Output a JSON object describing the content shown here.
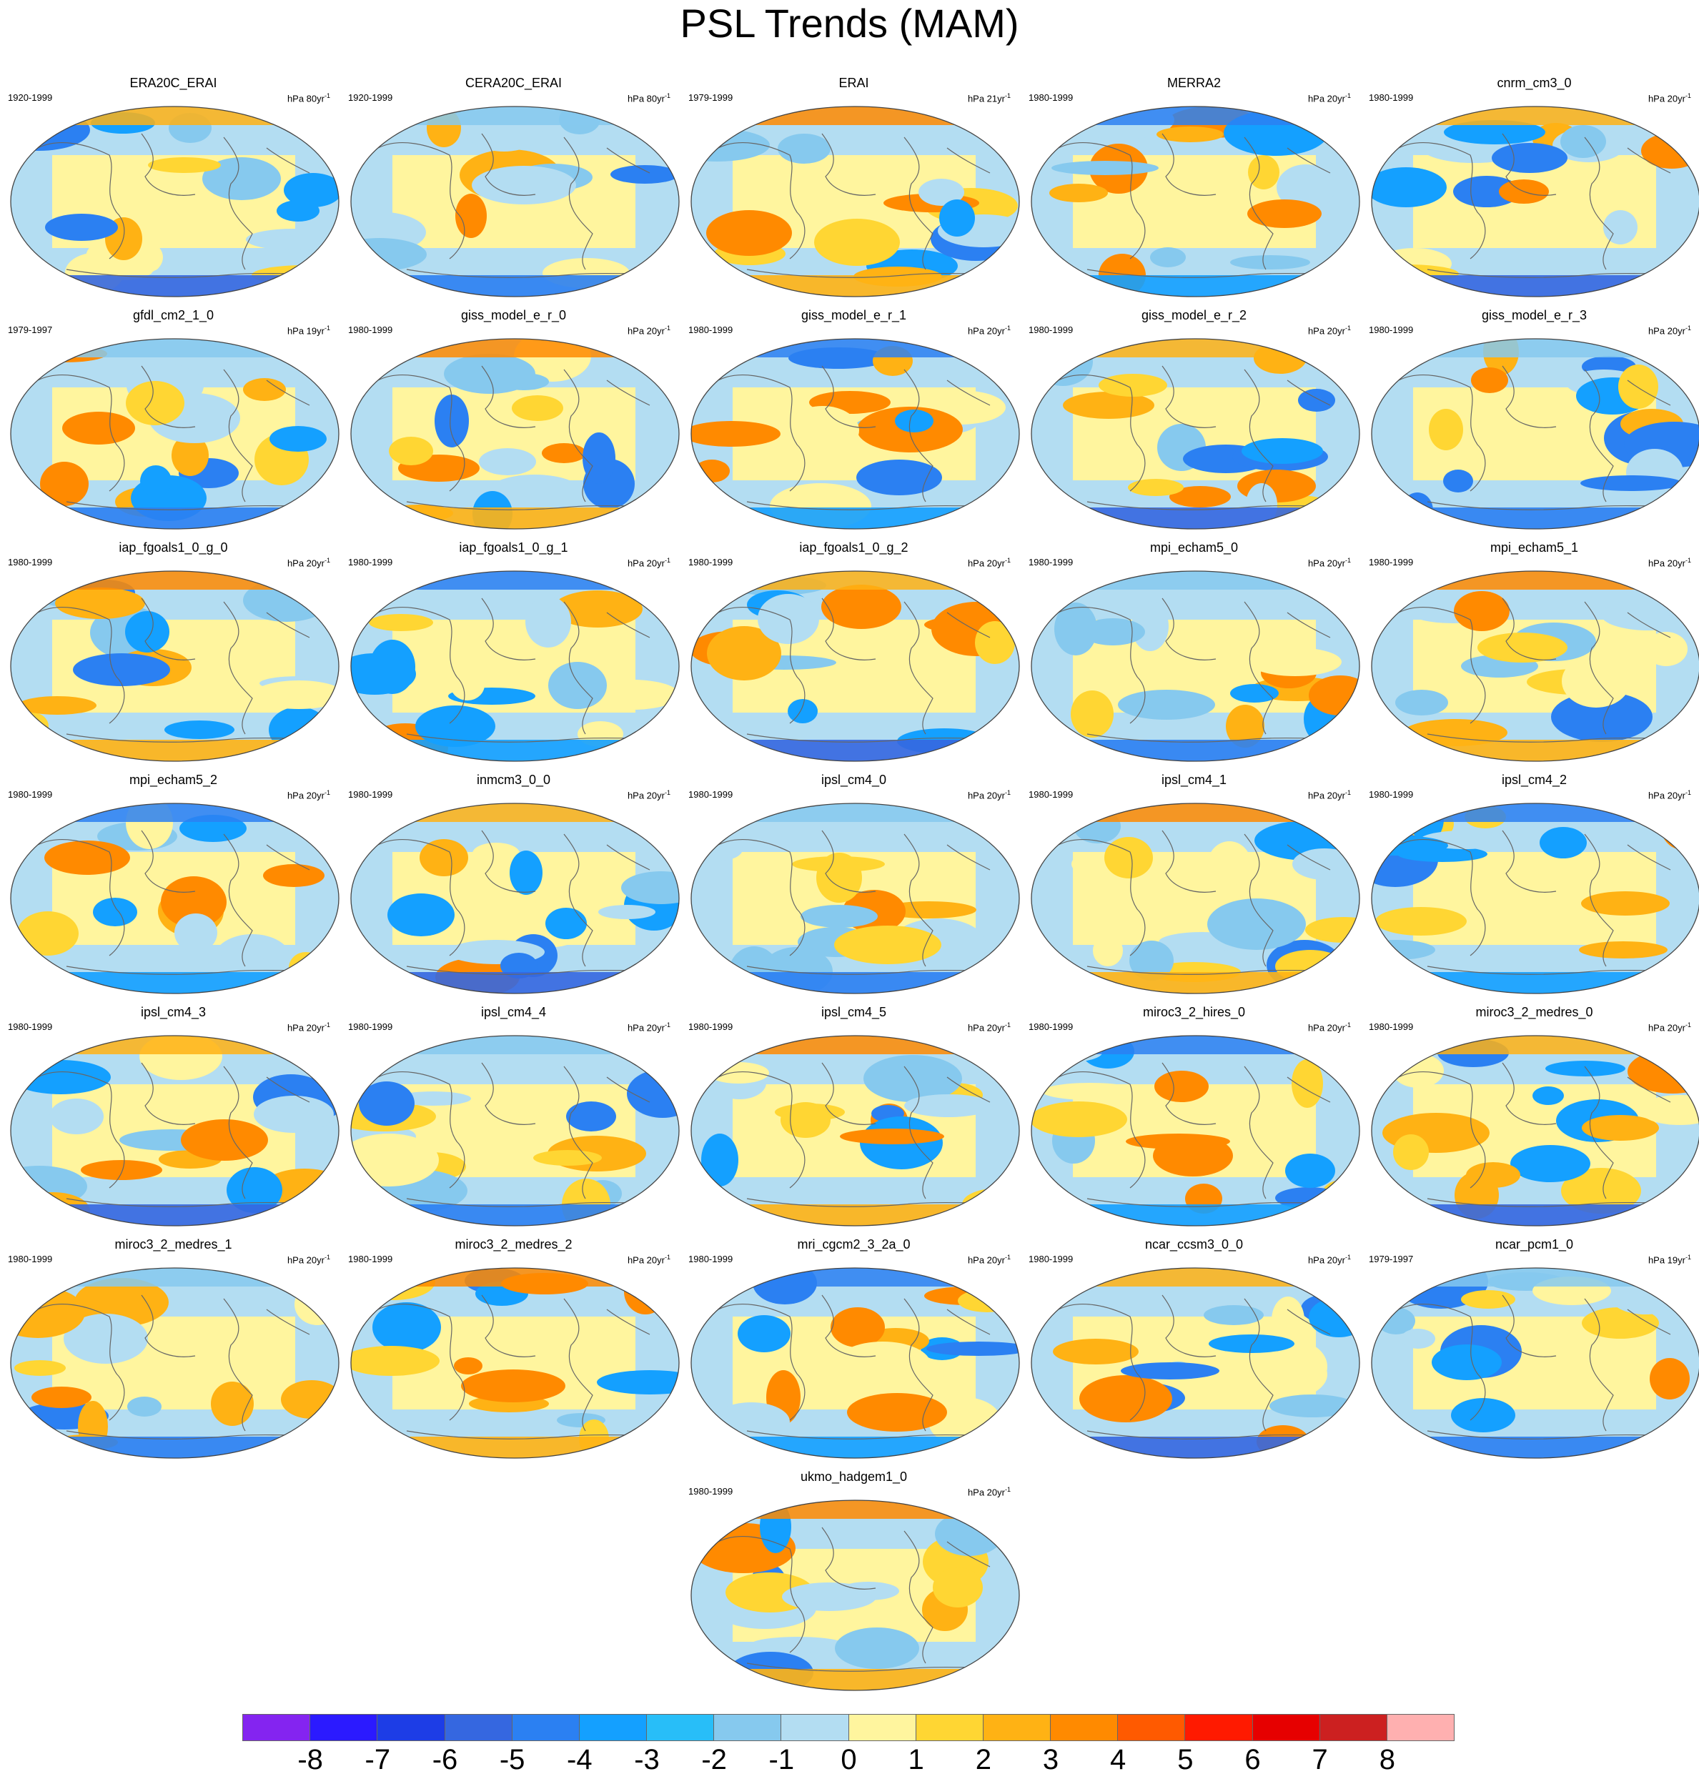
{
  "title": "PSL Trends (MAM)",
  "colorbar": {
    "labels": [
      "-8",
      "-7",
      "-6",
      "-5",
      "-4",
      "-3",
      "-2",
      "-1",
      "0",
      "1",
      "2",
      "3",
      "4",
      "5",
      "6",
      "7",
      "8"
    ],
    "colors": [
      "#8424f0",
      "#2b1aff",
      "#1d3de6",
      "#3567e0",
      "#2b80f2",
      "#14a0ff",
      "#28bef8",
      "#86c9ee",
      "#b3ddf2",
      "#fff59e",
      "#ffd633",
      "#ffb214",
      "#ff8a00",
      "#ff5a00",
      "#ff1a00",
      "#e60000",
      "#cc2020",
      "#ffb0b0"
    ]
  },
  "panels": [
    {
      "title": "ERA20C_ERAI",
      "period": "1920-1999",
      "units": "hPa 80yr",
      "exp": "-1"
    },
    {
      "title": "CERA20C_ERAI",
      "period": "1920-1999",
      "units": "hPa 80yr",
      "exp": "-1"
    },
    {
      "title": "ERAI",
      "period": "1979-1999",
      "units": "hPa 21yr",
      "exp": "-1"
    },
    {
      "title": "MERRA2",
      "period": "1980-1999",
      "units": "hPa 20yr",
      "exp": "-1"
    },
    {
      "title": "cnrm_cm3_0",
      "period": "1980-1999",
      "units": "hPa 20yr",
      "exp": "-1"
    },
    {
      "title": "gfdl_cm2_1_0",
      "period": "1979-1997",
      "units": "hPa 19yr",
      "exp": "-1"
    },
    {
      "title": "giss_model_e_r_0",
      "period": "1980-1999",
      "units": "hPa 20yr",
      "exp": "-1"
    },
    {
      "title": "giss_model_e_r_1",
      "period": "1980-1999",
      "units": "hPa 20yr",
      "exp": "-1"
    },
    {
      "title": "giss_model_e_r_2",
      "period": "1980-1999",
      "units": "hPa 20yr",
      "exp": "-1"
    },
    {
      "title": "giss_model_e_r_3",
      "period": "1980-1999",
      "units": "hPa 20yr",
      "exp": "-1"
    },
    {
      "title": "iap_fgoals1_0_g_0",
      "period": "1980-1999",
      "units": "hPa 20yr",
      "exp": "-1"
    },
    {
      "title": "iap_fgoals1_0_g_1",
      "period": "1980-1999",
      "units": "hPa 20yr",
      "exp": "-1"
    },
    {
      "title": "iap_fgoals1_0_g_2",
      "period": "1980-1999",
      "units": "hPa 20yr",
      "exp": "-1"
    },
    {
      "title": "mpi_echam5_0",
      "period": "1980-1999",
      "units": "hPa 20yr",
      "exp": "-1"
    },
    {
      "title": "mpi_echam5_1",
      "period": "1980-1999",
      "units": "hPa 20yr",
      "exp": "-1"
    },
    {
      "title": "mpi_echam5_2",
      "period": "1980-1999",
      "units": "hPa 20yr",
      "exp": "-1"
    },
    {
      "title": "inmcm3_0_0",
      "period": "1980-1999",
      "units": "hPa 20yr",
      "exp": "-1"
    },
    {
      "title": "ipsl_cm4_0",
      "period": "1980-1999",
      "units": "hPa 20yr",
      "exp": "-1"
    },
    {
      "title": "ipsl_cm4_1",
      "period": "1980-1999",
      "units": "hPa 20yr",
      "exp": "-1"
    },
    {
      "title": "ipsl_cm4_2",
      "period": "1980-1999",
      "units": "hPa 20yr",
      "exp": "-1"
    },
    {
      "title": "ipsl_cm4_3",
      "period": "1980-1999",
      "units": "hPa 20yr",
      "exp": "-1"
    },
    {
      "title": "ipsl_cm4_4",
      "period": "1980-1999",
      "units": "hPa 20yr",
      "exp": "-1"
    },
    {
      "title": "ipsl_cm4_5",
      "period": "1980-1999",
      "units": "hPa 20yr",
      "exp": "-1"
    },
    {
      "title": "miroc3_2_hires_0",
      "period": "1980-1999",
      "units": "hPa 20yr",
      "exp": "-1"
    },
    {
      "title": "miroc3_2_medres_0",
      "period": "1980-1999",
      "units": "hPa 20yr",
      "exp": "-1"
    },
    {
      "title": "miroc3_2_medres_1",
      "period": "1980-1999",
      "units": "hPa 20yr",
      "exp": "-1"
    },
    {
      "title": "miroc3_2_medres_2",
      "period": "1980-1999",
      "units": "hPa 20yr",
      "exp": "-1"
    },
    {
      "title": "mri_cgcm2_3_2a_0",
      "period": "1980-1999",
      "units": "hPa 20yr",
      "exp": "-1"
    },
    {
      "title": "ncar_ccsm3_0_0",
      "period": "1980-1999",
      "units": "hPa 20yr",
      "exp": "-1"
    },
    {
      "title": "ncar_pcm1_0",
      "period": "1979-1997",
      "units": "hPa 19yr",
      "exp": "-1"
    },
    {
      "title": "ukmo_hadgem1_0",
      "period": "1980-1999",
      "units": "hPa 20yr",
      "exp": "-1"
    }
  ]
}
